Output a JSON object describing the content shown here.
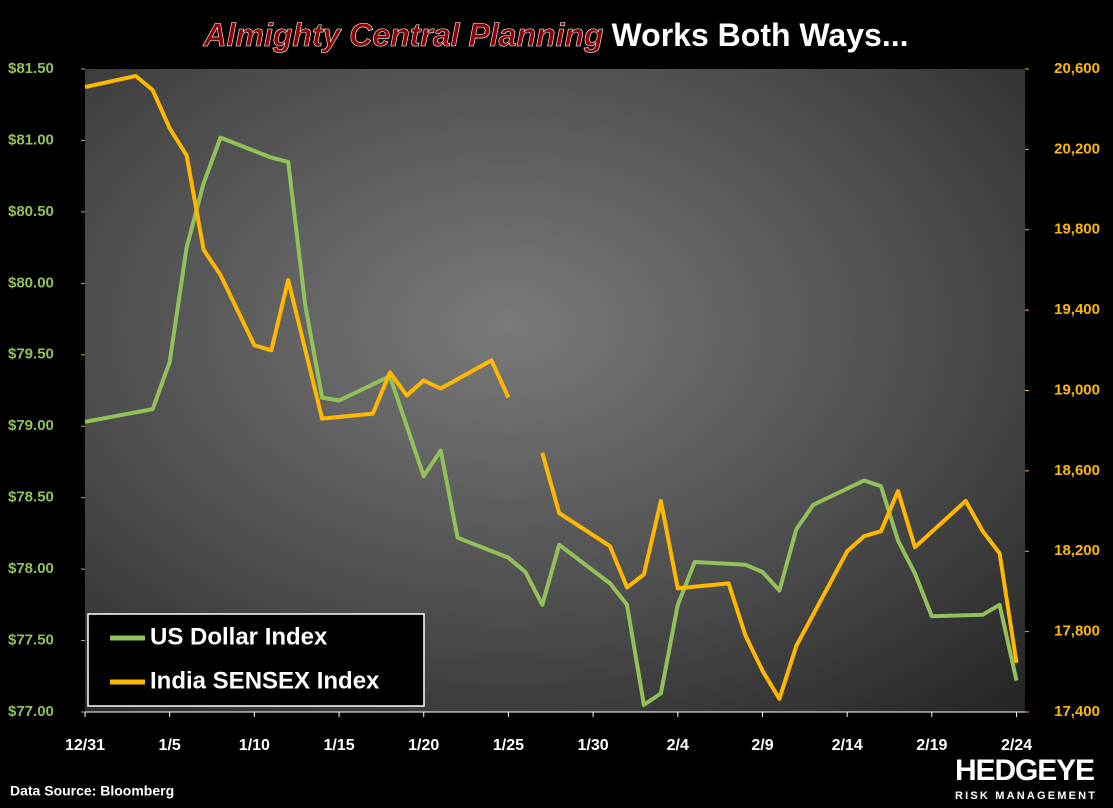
{
  "chart_data": {
    "type": "line",
    "title_emphasis": "Almighty Central Planning",
    "title_rest": "Works Both Ways...",
    "source": "Data Source: Bloomberg",
    "logo": {
      "name": "HEDGEYE",
      "tagline": "RISK MANAGEMENT"
    },
    "xlim": [
      0,
      55.5
    ],
    "xticks": [
      {
        "value": 0,
        "label": "12/31"
      },
      {
        "value": 5,
        "label": "1/5"
      },
      {
        "value": 10,
        "label": "1/10"
      },
      {
        "value": 15,
        "label": "1/15"
      },
      {
        "value": 20,
        "label": "1/20"
      },
      {
        "value": 25,
        "label": "1/25"
      },
      {
        "value": 30,
        "label": "1/30"
      },
      {
        "value": 35,
        "label": "2/4"
      },
      {
        "value": 40,
        "label": "2/9"
      },
      {
        "value": 45,
        "label": "2/14"
      },
      {
        "value": 50,
        "label": "2/19"
      },
      {
        "value": 55,
        "label": "2/24"
      }
    ],
    "ylim": [
      77,
      81.5
    ],
    "yticks": [
      {
        "value": 77,
        "label": "$77.00"
      },
      {
        "value": 77.5,
        "label": "$77.50"
      },
      {
        "value": 78,
        "label": "$78.00"
      },
      {
        "value": 78.5,
        "label": "$78.50"
      },
      {
        "value": 79,
        "label": "$79.00"
      },
      {
        "value": 79.5,
        "label": "$79.50"
      },
      {
        "value": 80,
        "label": "$80.00"
      },
      {
        "value": 80.5,
        "label": "$80.50"
      },
      {
        "value": 81,
        "label": "$81.00"
      },
      {
        "value": 81.5,
        "label": "$81.50"
      }
    ],
    "y2lim": [
      17400,
      20600
    ],
    "y2ticks": [
      {
        "value": 17400,
        "label": "17,400"
      },
      {
        "value": 17800,
        "label": "17,800"
      },
      {
        "value": 18200,
        "label": "18,200"
      },
      {
        "value": 18600,
        "label": "18,600"
      },
      {
        "value": 19000,
        "label": "19,000"
      },
      {
        "value": 19400,
        "label": "19,400"
      },
      {
        "value": 19800,
        "label": "19,800"
      },
      {
        "value": 20200,
        "label": "20,200"
      },
      {
        "value": 20600,
        "label": "20,600"
      }
    ],
    "legend": "bottom-left",
    "series": [
      {
        "name": "US Dollar Index",
        "color": "#92c15a",
        "axis": "y",
        "x": [
          0,
          4,
          5,
          6,
          7,
          8,
          11,
          12,
          13,
          14,
          15,
          18,
          19,
          20,
          21,
          22,
          25,
          26,
          27,
          28,
          31,
          32,
          33,
          34,
          35,
          36,
          39,
          40,
          41,
          42,
          43,
          46,
          47,
          48,
          49,
          50,
          53,
          54,
          55
        ],
        "values": [
          79.03,
          79.12,
          79.45,
          80.25,
          80.7,
          81.02,
          80.88,
          80.85,
          79.85,
          79.2,
          79.18,
          79.35,
          79.0,
          78.65,
          78.83,
          78.22,
          78.08,
          77.98,
          77.75,
          78.17,
          77.9,
          77.75,
          77.05,
          77.13,
          77.75,
          78.05,
          78.03,
          77.98,
          77.85,
          78.28,
          78.45,
          78.62,
          78.58,
          78.2,
          77.97,
          77.67,
          77.68,
          77.75,
          77.22
        ]
      },
      {
        "name": "India SENSEX Index",
        "color": "#ffb800",
        "axis": "y2",
        "x": [
          0,
          3,
          4,
          5,
          6,
          7,
          8,
          10,
          11,
          12,
          14,
          17,
          18,
          19,
          20,
          21,
          24,
          25,
          26,
          27,
          28,
          31,
          32,
          33,
          34,
          35,
          38,
          39,
          40,
          41,
          42,
          45,
          46,
          47,
          48,
          49,
          52,
          53,
          54,
          55
        ],
        "values": [
          20510,
          20565,
          20495,
          20305,
          20170,
          19700,
          19575,
          19225,
          19200,
          19550,
          18860,
          18885,
          19090,
          18975,
          19050,
          19010,
          19150,
          18965,
          null,
          18690,
          18390,
          18225,
          18020,
          18085,
          18450,
          18015,
          18040,
          17780,
          17605,
          17465,
          17730,
          18200,
          18275,
          18300,
          18500,
          18220,
          18450,
          18300,
          18190,
          17645
        ]
      }
    ]
  }
}
